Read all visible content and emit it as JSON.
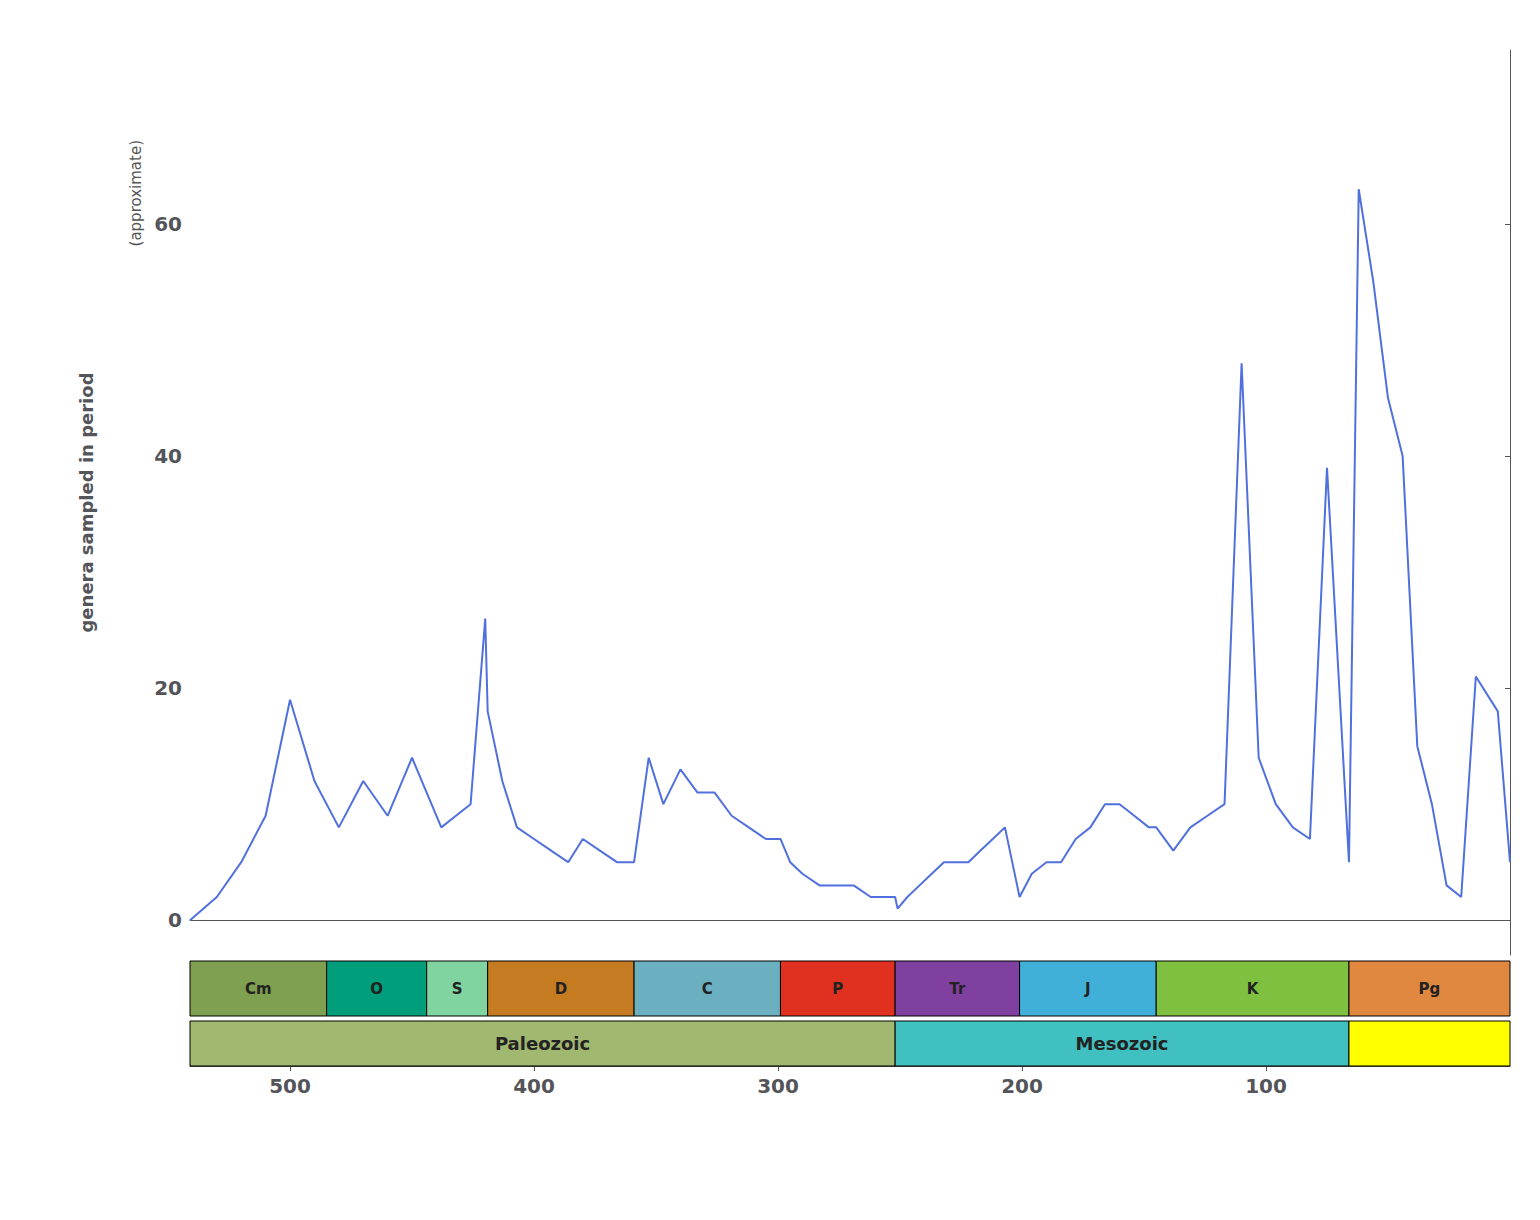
{
  "chart_data": {
    "type": "line",
    "ylabel": "genera sampled in period",
    "annotations": [
      "(approximate)"
    ],
    "x": [
      541,
      530,
      520,
      510,
      500,
      490,
      480,
      470,
      460,
      450,
      444,
      438,
      432,
      426,
      420,
      419,
      413,
      407,
      400,
      393,
      386,
      380,
      373,
      366,
      359,
      353,
      347,
      340,
      333,
      326,
      319,
      312,
      305,
      299,
      295,
      290,
      283,
      276,
      269,
      262,
      255,
      252,
      251,
      247,
      242,
      237,
      232,
      227,
      222,
      217,
      212,
      207,
      201,
      196,
      190,
      184,
      178,
      172,
      166,
      160,
      154,
      148,
      145,
      138,
      131,
      124,
      117,
      110,
      103,
      96,
      89,
      82,
      75,
      66,
      62,
      56,
      50,
      44,
      38,
      32,
      26,
      20,
      14,
      5,
      0
    ],
    "values": [
      0,
      2,
      5,
      9,
      19,
      12,
      8,
      12,
      9,
      14,
      11,
      8,
      9,
      10,
      26,
      18,
      12,
      8,
      7,
      6,
      5,
      7,
      6,
      5,
      5,
      14,
      10,
      13,
      11,
      11,
      9,
      8,
      7,
      7,
      5,
      4,
      3,
      3,
      3,
      2,
      2,
      2,
      1,
      2,
      3,
      4,
      5,
      5,
      5,
      6,
      7,
      8,
      2,
      4,
      5,
      5,
      7,
      8,
      10,
      10,
      9,
      8,
      8,
      6,
      8,
      9,
      10,
      48,
      14,
      10,
      8,
      7,
      39,
      5,
      63,
      55,
      45,
      40,
      15,
      10,
      3,
      2,
      21,
      18,
      5
    ],
    "xlim": [
      541,
      0
    ],
    "ylim": [
      -3,
      75
    ],
    "xticks": [
      500,
      400,
      300,
      200,
      100
    ],
    "yticks": [
      0,
      20,
      40,
      60
    ],
    "grid": false,
    "periods": [
      {
        "name": "Cm",
        "start": 541,
        "end": 485,
        "color": "#7fa050"
      },
      {
        "name": "O",
        "start": 485,
        "end": 444,
        "color": "#009e7a"
      },
      {
        "name": "S",
        "start": 444,
        "end": 419,
        "color": "#80d4a0"
      },
      {
        "name": "D",
        "start": 419,
        "end": 359,
        "color": "#c47b22"
      },
      {
        "name": "C",
        "start": 359,
        "end": 299,
        "color": "#6ab0c0"
      },
      {
        "name": "P",
        "start": 299,
        "end": 252,
        "color": "#e03020"
      },
      {
        "name": "Tr",
        "start": 252,
        "end": 201,
        "color": "#8040a0"
      },
      {
        "name": "J",
        "start": 201,
        "end": 145,
        "color": "#40b0d8"
      },
      {
        "name": "K",
        "start": 145,
        "end": 66,
        "color": "#80c040"
      },
      {
        "name": "Pg",
        "start": 66,
        "end": 0,
        "color": "#e08840"
      }
    ],
    "eras": [
      {
        "name": "Paleozoic",
        "start": 541,
        "end": 252,
        "color": "#a0b870"
      },
      {
        "name": "Mesozoic",
        "start": 252,
        "end": 66,
        "color": "#40c0c0"
      },
      {
        "start": 66,
        "end": 0,
        "color": "#ffff00"
      }
    ]
  }
}
